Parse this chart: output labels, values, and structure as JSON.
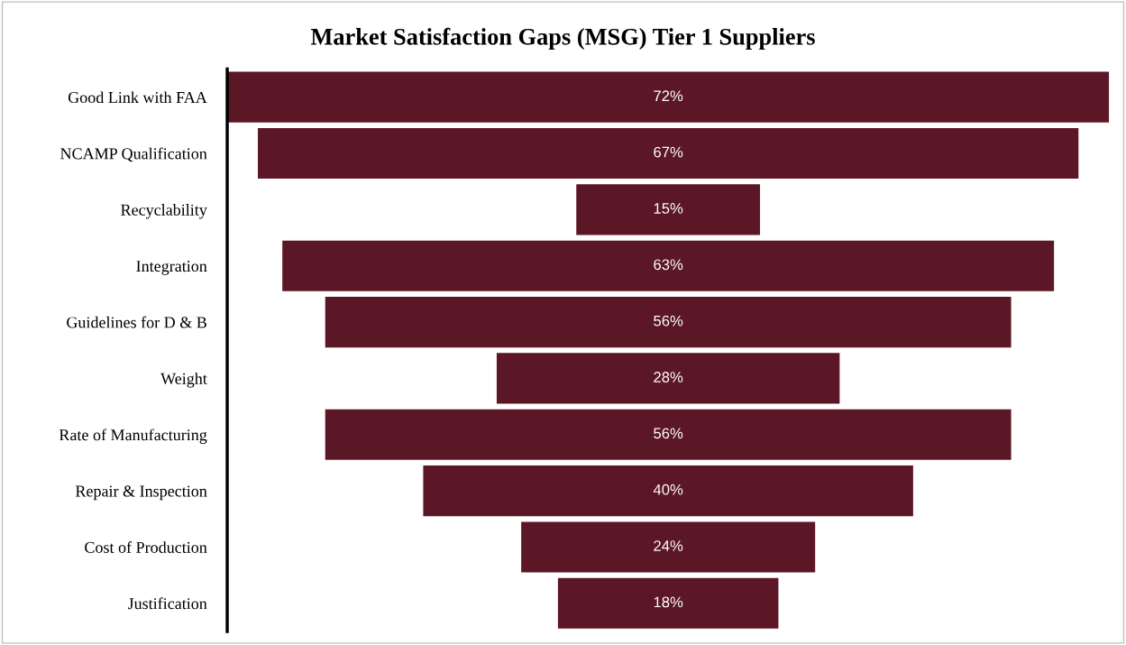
{
  "chart_data": {
    "type": "other",
    "title": "Market Satisfaction Gaps (MSG) Tier 1 Suppliers",
    "categories": [
      "Good Link with FAA",
      "NCAMP Qualification",
      "Recyclability",
      "Integration",
      "Guidelines for D & B",
      "Weight",
      "Rate of Manufacturing",
      "Repair & Inspection",
      "Cost of Production",
      "Justification"
    ],
    "values": [
      72,
      67,
      15,
      63,
      56,
      28,
      56,
      40,
      24,
      18
    ],
    "value_labels": [
      "72%",
      "67%",
      "15%",
      "63%",
      "56%",
      "28%",
      "56%",
      "40%",
      "24%",
      "18%"
    ],
    "color": "#5c1726"
  }
}
